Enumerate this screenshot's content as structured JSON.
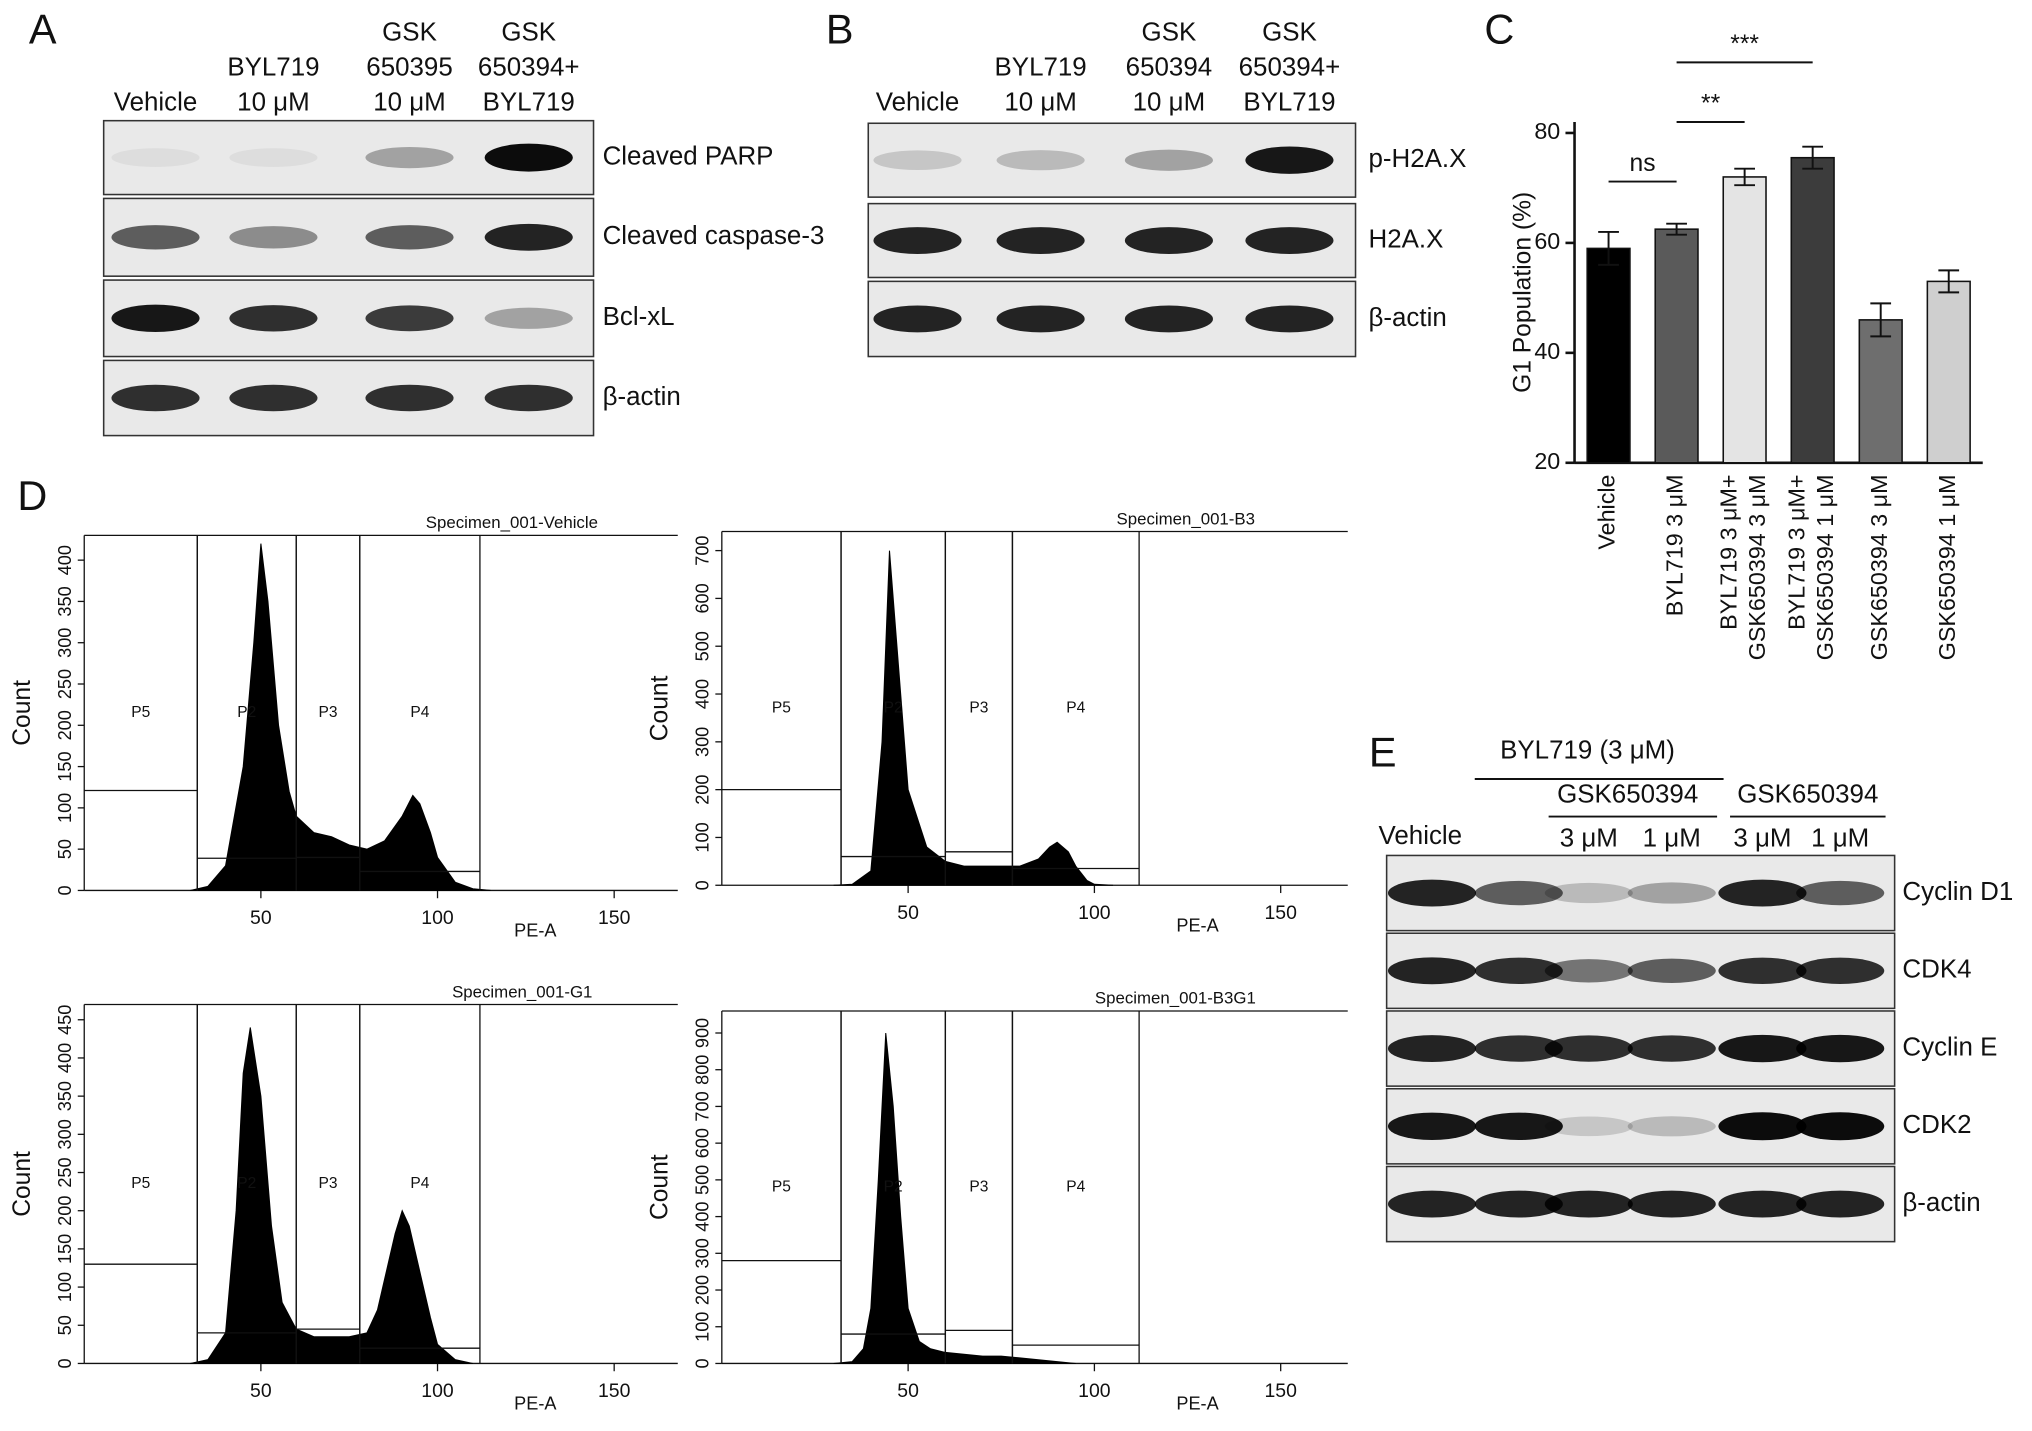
{
  "panels": {
    "A": {
      "label": "A",
      "columns": [
        [
          "Vehicle"
        ],
        [
          "BYL719",
          "10 μM"
        ],
        [
          "GSK",
          "650395",
          "10 μM"
        ],
        [
          "GSK",
          "650394+",
          "BYL719"
        ]
      ],
      "rows": [
        "Cleaved PARP",
        "Cleaved caspase-3",
        "Bcl-xL",
        "β-actin"
      ]
    },
    "B": {
      "label": "B",
      "columns": [
        [
          "Vehicle"
        ],
        [
          "BYL719",
          "10 μM"
        ],
        [
          "GSK",
          "650394",
          "10 μM"
        ],
        [
          "GSK",
          "650394+",
          "BYL719"
        ]
      ],
      "rows": [
        "p-H2A.X",
        "H2A.X",
        "β-actin"
      ]
    },
    "C": {
      "label": "C"
    },
    "D": {
      "label": "D"
    },
    "E": {
      "label": "E",
      "group_top": "BYL719 (3 μM)",
      "group_sub": "GSK650394",
      "group_right": "GSK650394",
      "vehicle": "Vehicle",
      "doses": [
        "3 μM",
        "1 μM",
        "3 μM",
        "1 μM"
      ],
      "rows": [
        "Cyclin D1",
        "CDK4",
        "Cyclin E",
        "CDK2",
        "β-actin"
      ]
    }
  },
  "chart_data": [
    {
      "type": "bar",
      "ylabel": "G1 Population (%)",
      "categories": [
        "Vehicle",
        "BYL719 3 μM",
        [
          "BYL719 3 μM+",
          "GSK650394 3 μM"
        ],
        [
          "BYL719 3 μM+",
          "GSK650394 1 μM"
        ],
        "GSK650394 3 μM",
        "GSK650394 1 μM"
      ],
      "values": [
        59,
        62.5,
        72,
        75.5,
        46,
        53
      ],
      "errors": [
        3,
        1,
        1.5,
        2,
        3,
        2
      ],
      "colors": [
        "#000000",
        "#5a5a5a",
        "#e4e4e4",
        "#3c3c3c",
        "#6e6e6e",
        "#cfcfcf"
      ],
      "ylim": [
        20,
        82
      ],
      "yticks": [
        20,
        40,
        60,
        80
      ],
      "annotations": [
        {
          "text": "ns",
          "from": 0,
          "to": 1
        },
        {
          "text": "**",
          "from": 1,
          "to": 2
        },
        {
          "text": "***",
          "from": 1,
          "to": 3
        }
      ]
    },
    {
      "type": "area",
      "title": "Specimen_001-Vehicle",
      "xlabel": "PE-A",
      "ylabel": "Count",
      "color": "#000000",
      "x": [
        30,
        35,
        40,
        45,
        48,
        50,
        52,
        55,
        58,
        60,
        65,
        70,
        75,
        80,
        85,
        90,
        93,
        95,
        98,
        100,
        105,
        110,
        115
      ],
      "values": [
        0,
        5,
        30,
        150,
        300,
        420,
        350,
        200,
        120,
        90,
        70,
        65,
        55,
        50,
        60,
        90,
        115,
        105,
        70,
        40,
        10,
        2,
        0
      ],
      "xlim": [
        0,
        168
      ],
      "ylim": [
        0,
        430
      ],
      "xticks": [
        50,
        100,
        150
      ],
      "yticks": [
        0,
        50,
        100,
        150,
        200,
        250,
        300,
        350,
        400
      ],
      "gates": [
        {
          "label": "P5",
          "range": [
            0,
            32
          ],
          "level": 121
        },
        {
          "label": "P2",
          "range": [
            32,
            60
          ],
          "level": 39
        },
        {
          "label": "P3",
          "range": [
            60,
            78
          ],
          "level": 40
        },
        {
          "label": "P4",
          "range": [
            78,
            112
          ],
          "level": 23
        }
      ]
    },
    {
      "type": "area",
      "title": "Specimen_001-B3",
      "xlabel": "PE-A",
      "ylabel": "Count",
      "color": "#000000",
      "x": [
        30,
        35,
        40,
        43,
        45,
        47,
        50,
        55,
        60,
        65,
        70,
        75,
        80,
        85,
        88,
        90,
        93,
        95,
        98,
        100,
        105
      ],
      "values": [
        0,
        2,
        30,
        300,
        700,
        500,
        200,
        80,
        50,
        40,
        40,
        40,
        40,
        55,
        80,
        90,
        70,
        40,
        10,
        2,
        0
      ],
      "xlim": [
        0,
        168
      ],
      "ylim": [
        0,
        740
      ],
      "xticks": [
        50,
        100,
        150
      ],
      "yticks": [
        0,
        100,
        200,
        300,
        400,
        500,
        600,
        700
      ],
      "gates": [
        {
          "label": "P5",
          "range": [
            0,
            32
          ],
          "level": 200
        },
        {
          "label": "P2",
          "range": [
            32,
            60
          ],
          "level": 60
        },
        {
          "label": "P3",
          "range": [
            60,
            78
          ],
          "level": 70
        },
        {
          "label": "P4",
          "range": [
            78,
            112
          ],
          "level": 35
        }
      ]
    },
    {
      "type": "area",
      "title": "Specimen_001-G1",
      "xlabel": "PE-A",
      "ylabel": "Count",
      "color": "#000000",
      "x": [
        30,
        35,
        40,
        43,
        45,
        47,
        50,
        53,
        56,
        60,
        65,
        70,
        75,
        80,
        83,
        86,
        88,
        90,
        92,
        95,
        98,
        100,
        105,
        110
      ],
      "values": [
        0,
        5,
        40,
        200,
        380,
        440,
        350,
        180,
        80,
        45,
        35,
        35,
        35,
        40,
        70,
        130,
        170,
        200,
        180,
        120,
        60,
        25,
        5,
        0
      ],
      "xlim": [
        0,
        168
      ],
      "ylim": [
        0,
        470
      ],
      "xticks": [
        50,
        100,
        150
      ],
      "yticks": [
        0,
        50,
        100,
        150,
        200,
        250,
        300,
        350,
        400,
        450
      ],
      "gates": [
        {
          "label": "P5",
          "range": [
            0,
            32
          ],
          "level": 130
        },
        {
          "label": "P2",
          "range": [
            32,
            60
          ],
          "level": 40
        },
        {
          "label": "P3",
          "range": [
            60,
            78
          ],
          "level": 45
        },
        {
          "label": "P4",
          "range": [
            78,
            112
          ],
          "level": 20
        }
      ]
    },
    {
      "type": "area",
      "title": "Specimen_001-B3G1",
      "xlabel": "PE-A",
      "ylabel": "Count",
      "color": "#000000",
      "x": [
        30,
        35,
        38,
        40,
        42,
        44,
        46,
        48,
        50,
        53,
        56,
        60,
        65,
        70,
        75,
        80,
        85,
        90,
        95
      ],
      "values": [
        0,
        5,
        40,
        150,
        500,
        900,
        700,
        400,
        150,
        60,
        40,
        30,
        25,
        20,
        20,
        15,
        10,
        5,
        0
      ],
      "xlim": [
        0,
        168
      ],
      "ylim": [
        0,
        960
      ],
      "xticks": [
        50,
        100,
        150
      ],
      "yticks": [
        0,
        100,
        200,
        300,
        400,
        500,
        600,
        700,
        800,
        900
      ],
      "gates": [
        {
          "label": "P5",
          "range": [
            0,
            32
          ],
          "level": 280
        },
        {
          "label": "P2",
          "range": [
            32,
            60
          ],
          "level": 80
        },
        {
          "label": "P3",
          "range": [
            60,
            78
          ],
          "level": 90
        },
        {
          "label": "P4",
          "range": [
            78,
            112
          ],
          "level": 50
        }
      ]
    }
  ]
}
